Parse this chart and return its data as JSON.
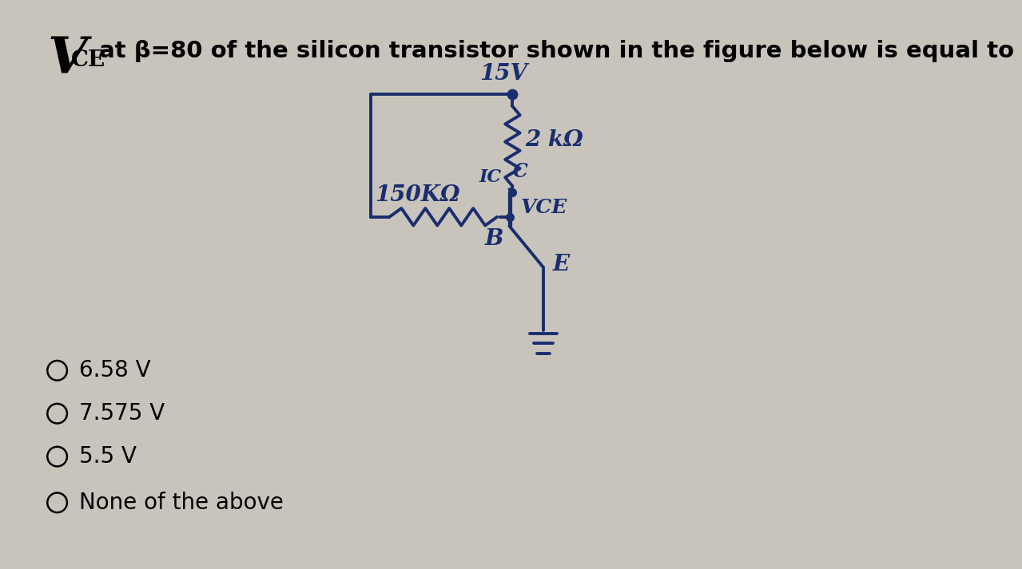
{
  "bg_color": "#c8c4bc",
  "title_rest": " at β=80 of the silicon transistor shown in the figure below is equal to",
  "circuit_color": "#1a2e6e",
  "options": [
    "6.58 V",
    "7.575 V",
    "5.5 V",
    "None of the above"
  ],
  "label_15v": "15V",
  "label_150k": "150KΩ",
  "label_2k": "2 kΩ",
  "label_ic": "IC",
  "label_c": "C",
  "label_vce": "VCE",
  "label_b": "B",
  "label_e": "E",
  "lw": 2.8
}
